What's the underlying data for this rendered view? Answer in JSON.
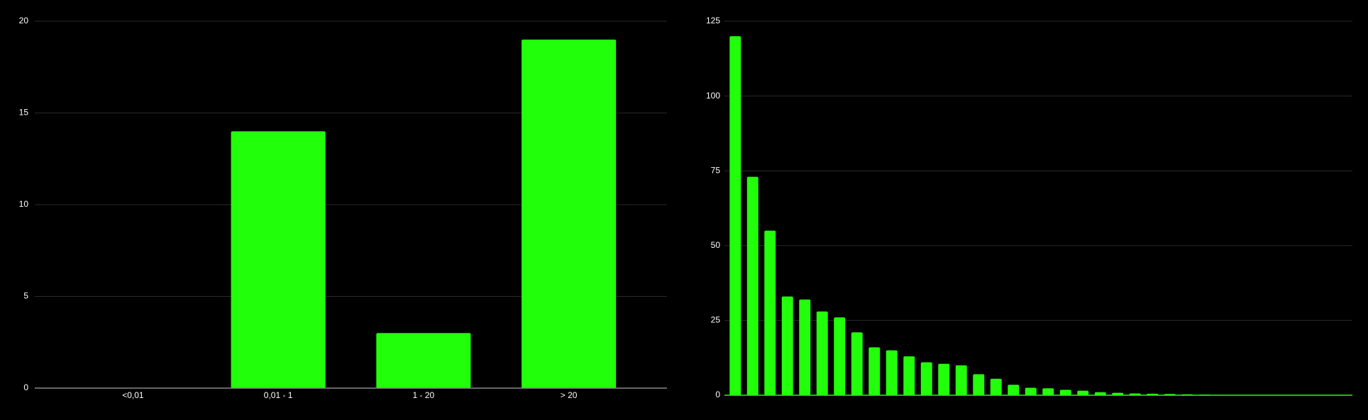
{
  "chart_data": [
    {
      "type": "bar",
      "categories": [
        "<0,01",
        "0,01 - 1",
        "1 - 20",
        "> 20"
      ],
      "values": [
        0,
        14,
        3,
        19
      ],
      "color": "#22ff0a",
      "ylim": [
        0,
        20
      ],
      "yticks": [
        0,
        5,
        10,
        15,
        20
      ],
      "grid": true
    },
    {
      "type": "bar",
      "categories": [
        null,
        null,
        null,
        null,
        null,
        null,
        null,
        null,
        null,
        null,
        null,
        null,
        null,
        null,
        null,
        null,
        null,
        null,
        null,
        null,
        null,
        null,
        null,
        null,
        null,
        null,
        null,
        null,
        null,
        null,
        null,
        null,
        null,
        null,
        null,
        null
      ],
      "values": [
        120,
        73,
        55,
        33,
        32,
        28,
        26,
        21,
        16,
        15,
        13,
        11,
        10.5,
        10,
        7,
        5.5,
        3.5,
        2.5,
        2.3,
        1.8,
        1.5,
        1,
        0.8,
        0.6,
        0.5,
        0.4,
        0.3,
        0.2,
        0.1,
        0.1,
        0.1,
        0.1,
        0.1,
        0.1,
        0.1,
        0.1
      ],
      "color": "#22ff0a",
      "ylim": [
        0,
        125
      ],
      "yticks": [
        0,
        25,
        50,
        75,
        100,
        125
      ],
      "grid": true
    }
  ]
}
